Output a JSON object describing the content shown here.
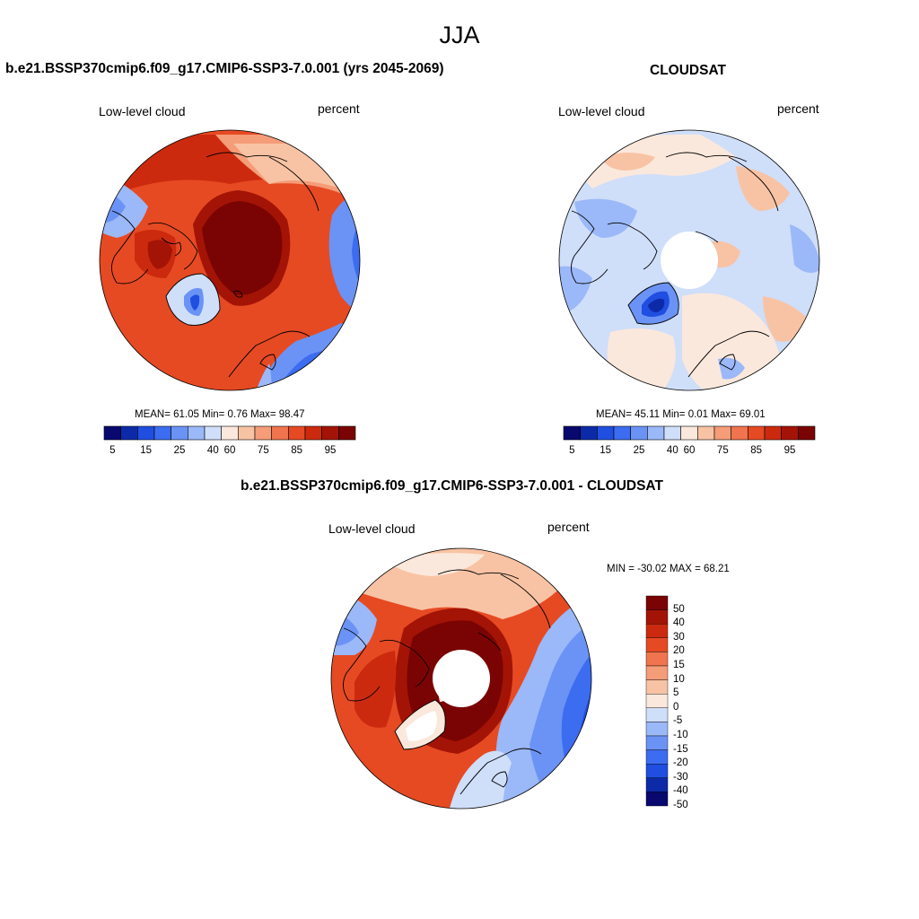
{
  "main_title": "JJA",
  "palette": {
    "abs": [
      "#08086e",
      "#0c2aa8",
      "#1f4ee0",
      "#3c6cf0",
      "#6b93f5",
      "#9bb8f8",
      "#cfdef9",
      "#fbe8dc",
      "#f8c3a4",
      "#f59c78",
      "#f0744e",
      "#e64a23",
      "#cc2a0e",
      "#a31406",
      "#7a0403"
    ],
    "diff": [
      "#7a0403",
      "#a31406",
      "#cc2a0e",
      "#e64a23",
      "#f0744e",
      "#f59c78",
      "#f8c3a4",
      "#fbe8dc",
      "#cfdef9",
      "#9bb8f8",
      "#6b93f5",
      "#3c6cf0",
      "#1f4ee0",
      "#0c2aa8",
      "#08086e"
    ]
  },
  "panel_model": {
    "title": "b.e21.BSSP370cmip6.f09_g17.CMIP6-SSP3-7.0.001 (yrs 2045-2069)",
    "left_label": "Low-level cloud",
    "right_label": "percent",
    "stats": "MEAN=  61.05  Min=   0.76  Max=  98.47",
    "colorbar_ticks": [
      "5",
      "15",
      "25",
      "40",
      "60",
      "75",
      "85",
      "95"
    ]
  },
  "panel_obs": {
    "title": "CLOUDSAT",
    "left_label": "Low-level cloud",
    "right_label": "percent",
    "stats": "MEAN=  45.11  Min=   0.01  Max=  69.01",
    "colorbar_ticks": [
      "5",
      "15",
      "25",
      "40",
      "60",
      "75",
      "85",
      "95"
    ]
  },
  "panel_diff": {
    "title": "b.e21.BSSP370cmip6.f09_g17.CMIP6-SSP3-7.0.001 - CLOUDSAT",
    "left_label": "Low-level cloud",
    "right_label": "percent",
    "stats": "MIN = -30.02 MAX =  68.21",
    "colorbar_ticks": [
      "50",
      "40",
      "30",
      "20",
      "15",
      "10",
      "5",
      "0",
      "-5",
      "-10",
      "-15",
      "-20",
      "-30",
      "-40",
      "-50"
    ]
  }
}
